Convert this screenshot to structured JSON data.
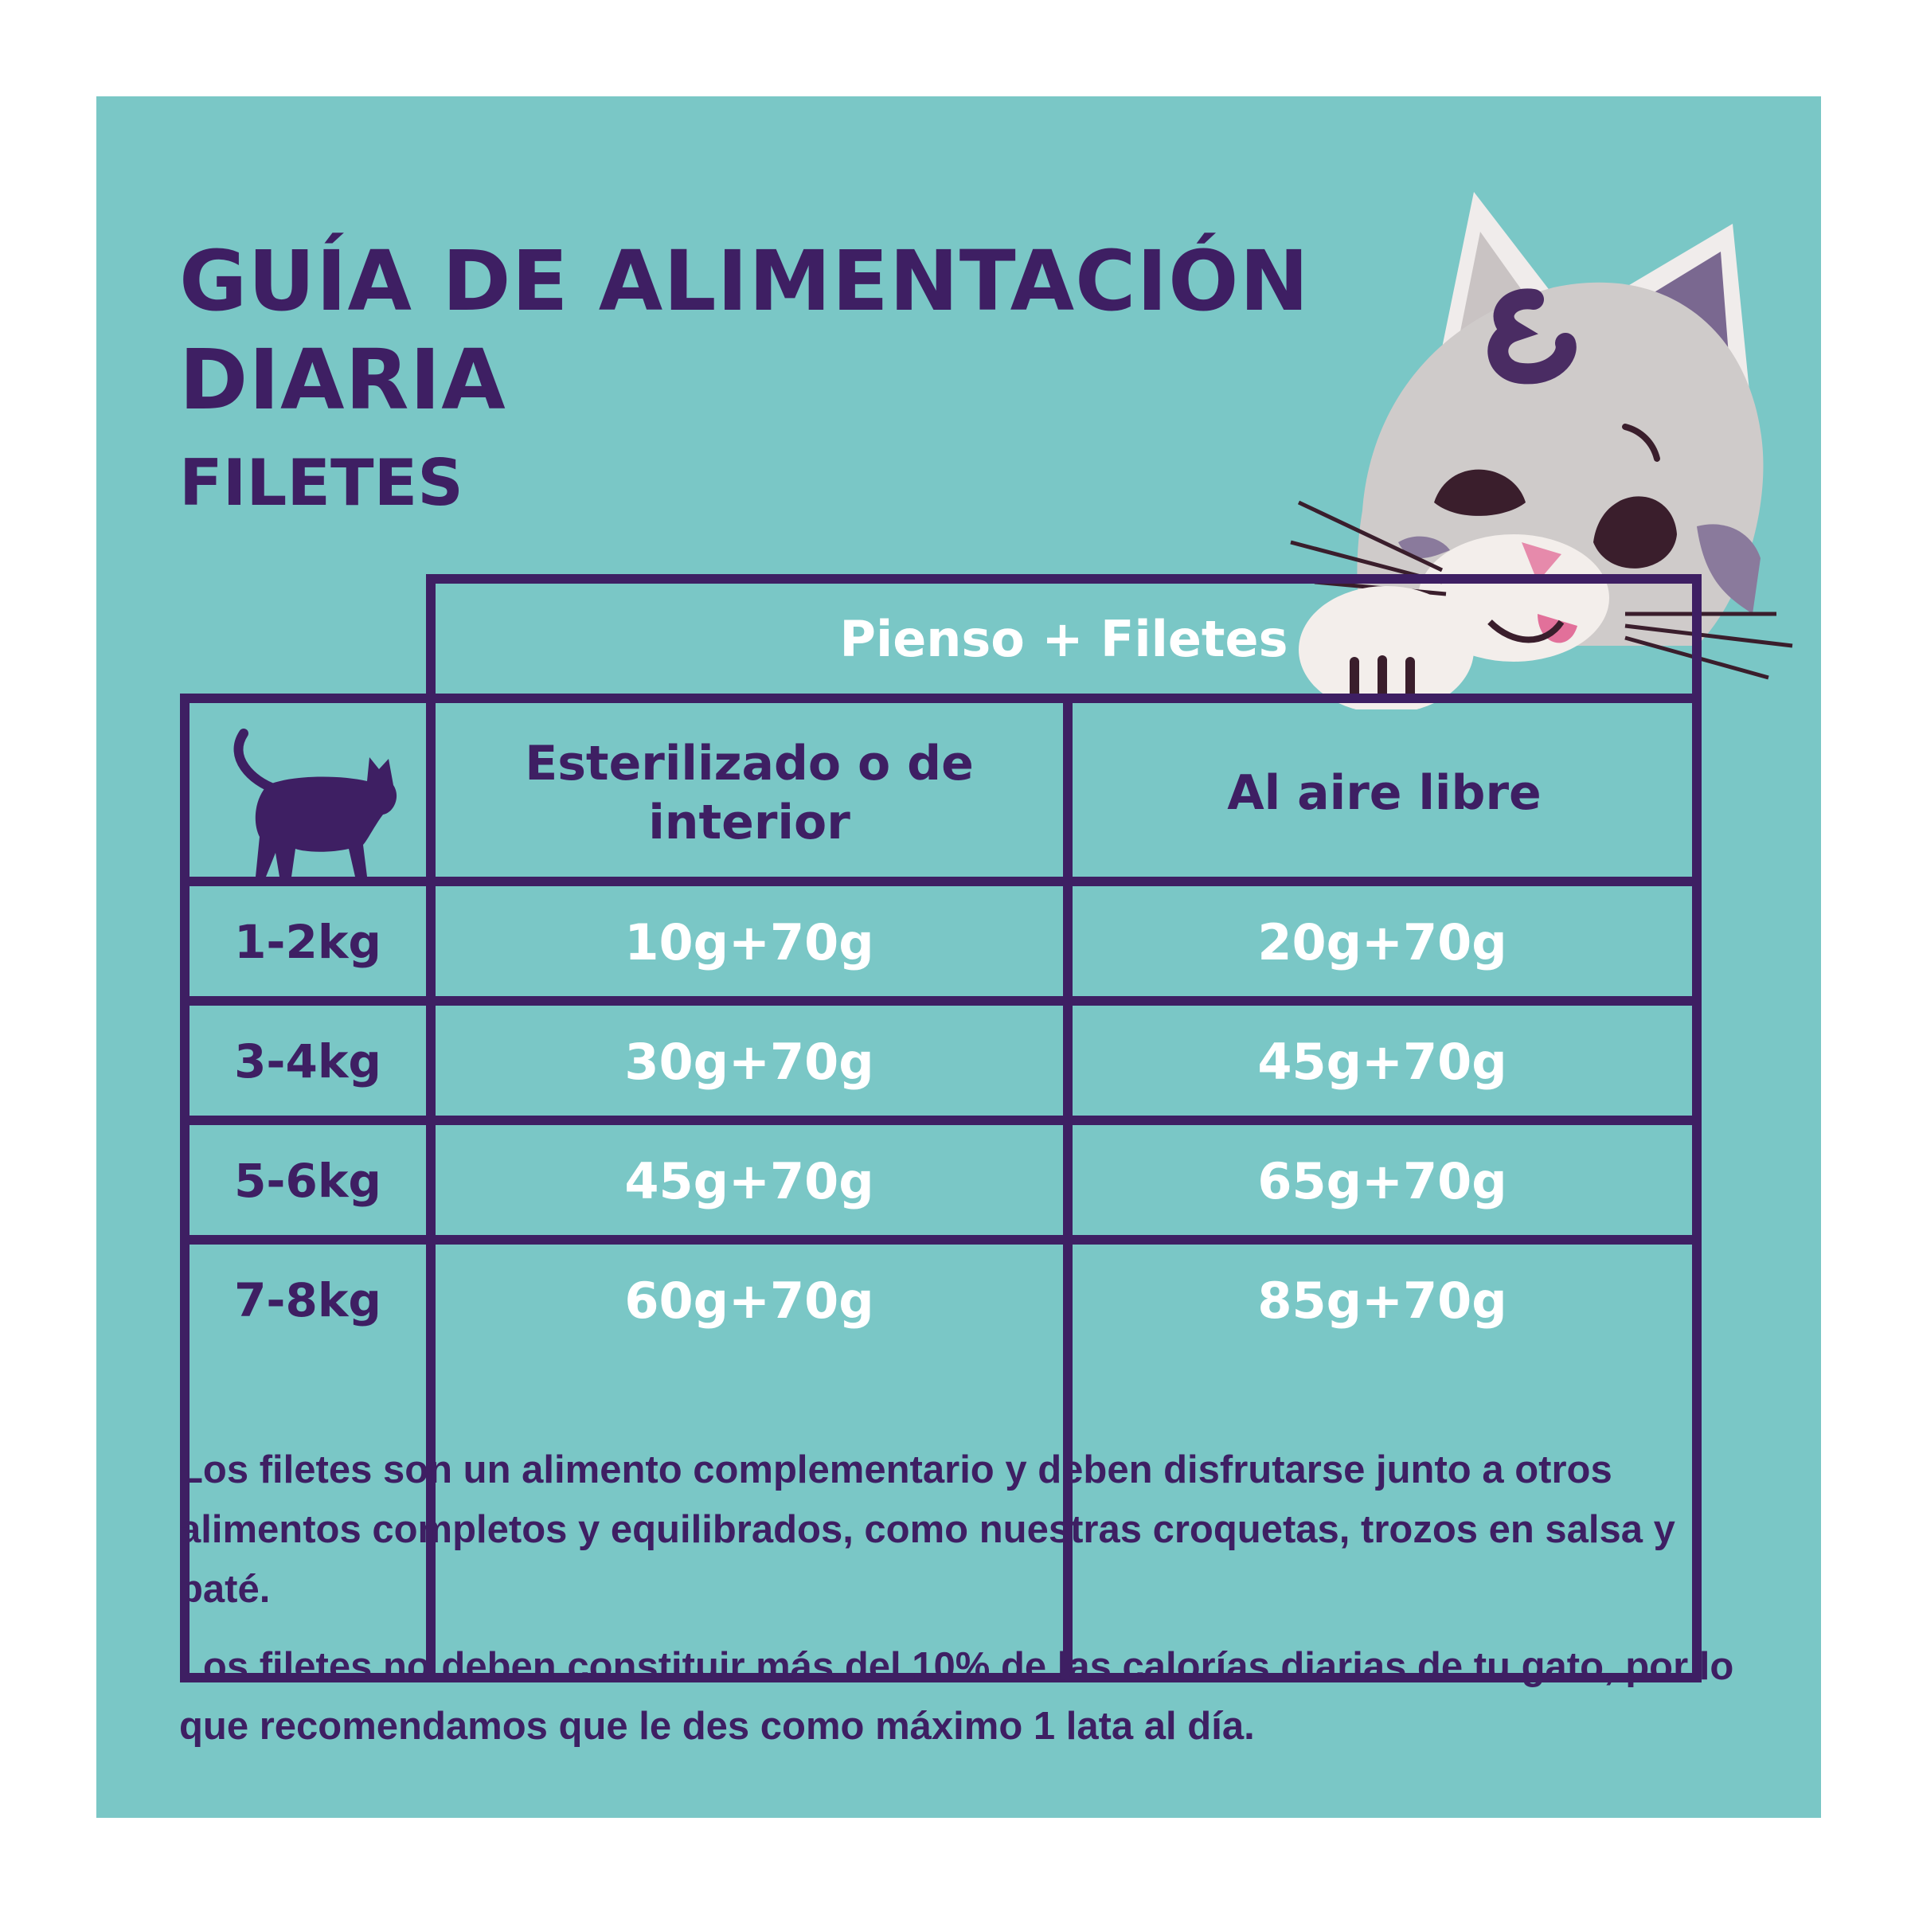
{
  "header": {
    "title_line1": "GUÍA DE ALIMENTACIÓN",
    "title_line2": "DIARIA",
    "subtitle": "FILETES"
  },
  "colors": {
    "panel": "#7ac7c6",
    "ink": "#3e1f63",
    "value_text": "#ffffff"
  },
  "icons": {
    "corner_header": "cat-silhouette-icon",
    "illustration": "cat-illustration"
  },
  "table": {
    "group_header": "Pienso + Filetes",
    "columns": [
      "Esterilizado o de interior",
      "Al aire libre"
    ],
    "rows": [
      {
        "weight": "1-2kg",
        "values": [
          "10g+70g",
          "20g+70g"
        ]
      },
      {
        "weight": "3-4kg",
        "values": [
          "30g+70g",
          "45g+70g"
        ]
      },
      {
        "weight": "5-6kg",
        "values": [
          "45g+70g",
          "65g+70g"
        ]
      },
      {
        "weight": "7-8kg",
        "values": [
          "60g+70g",
          "85g+70g"
        ]
      }
    ]
  },
  "notes": [
    "Los filetes son un alimento complementario y deben disfrutarse junto a otros alimentos completos y equilibrados, como nuestras croquetas, trozos en salsa y paté.",
    "Los filetes no deben constituir más del 10% de las calorías diarias de tu gato, por lo que recomendamos que le des como máximo 1 lata al día."
  ]
}
